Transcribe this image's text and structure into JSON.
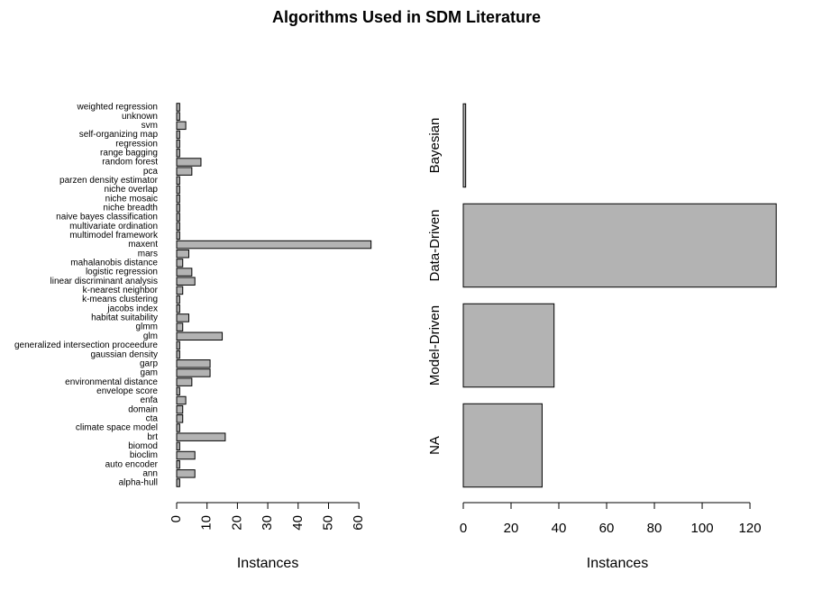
{
  "title": "Algorithms Used in SDM Literature",
  "chart_data": [
    {
      "type": "barh",
      "xlabel": "Instances",
      "color": "#b3b3b3",
      "categories": [
        "alpha-hull",
        "ann",
        "auto encoder",
        "bioclim",
        "biomod",
        "brt",
        "climate space model",
        "cta",
        "domain",
        "enfa",
        "envelope score",
        "environmental distance",
        "gam",
        "garp",
        "gaussian density",
        "generalized intersection proceedure",
        "glm",
        "glmm",
        "habitat suitability",
        "jacobs index",
        "k-means clustering",
        "k-nearest neighbor",
        "linear discriminant analysis",
        "logistic regression",
        "mahalanobis distance",
        "mars",
        "maxent",
        "multimodel framework",
        "multivariate ordination",
        "naive bayes classification",
        "niche breadth",
        "niche mosaic",
        "niche overlap",
        "parzen density estimator",
        "pca",
        "random forest",
        "range bagging",
        "regression",
        "self-organizing map",
        "svm",
        "unknown",
        "weighted regression"
      ],
      "values": [
        1,
        6,
        1,
        6,
        1,
        16,
        1,
        2,
        2,
        3,
        1,
        5,
        11,
        11,
        1,
        1,
        15,
        2,
        4,
        1,
        1,
        2,
        6,
        5,
        2,
        4,
        64,
        1,
        1,
        1,
        1,
        1,
        1,
        1,
        5,
        8,
        1,
        1,
        1,
        3,
        1,
        1
      ],
      "xlim": [
        0,
        66
      ],
      "xticks": [
        0,
        10,
        20,
        30,
        40,
        50,
        60
      ],
      "xtick_label_rotation": 90,
      "category_label_rotation": 0
    },
    {
      "type": "barh",
      "xlabel": "Instances",
      "color": "#b3b3b3",
      "categories": [
        "NA",
        "Model-Driven",
        "Data-Driven",
        "Bayesian"
      ],
      "values": [
        33,
        38,
        131,
        1
      ],
      "xlim": [
        0,
        133
      ],
      "xticks": [
        0,
        20,
        40,
        60,
        80,
        100,
        120
      ],
      "xtick_label_rotation": 0,
      "category_label_rotation": 90
    }
  ]
}
